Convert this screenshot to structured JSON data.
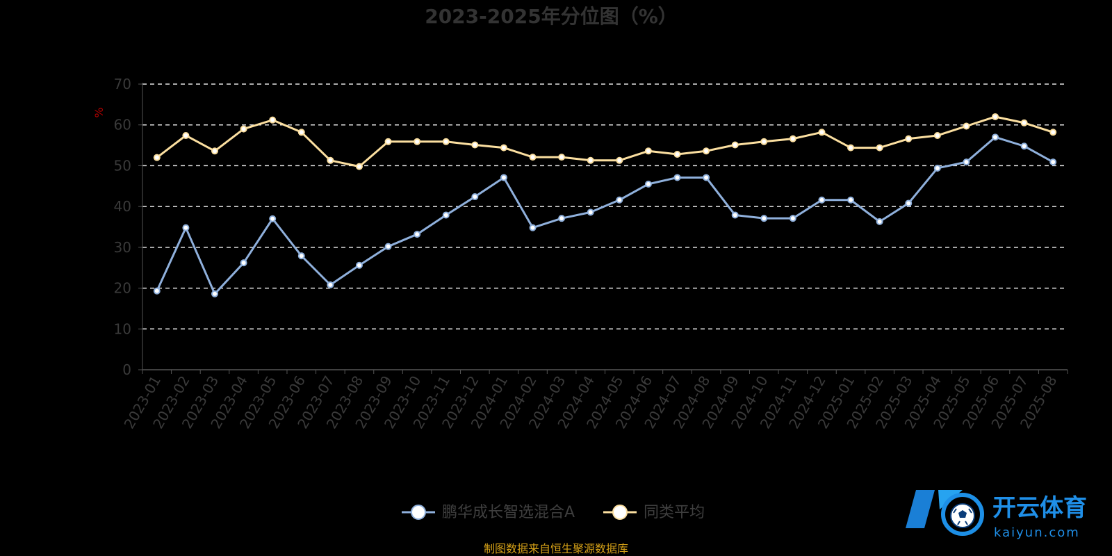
{
  "chart_data": {
    "type": "line",
    "title": "2023-2025年分位图（%）",
    "ylabel": "%",
    "ylim": [
      0,
      70
    ],
    "yticks": [
      0,
      10,
      20,
      30,
      40,
      50,
      60,
      70
    ],
    "grid": true,
    "legend_position": "bottom-center",
    "categories": [
      "2023-01",
      "2023-02",
      "2023-03",
      "2023-04",
      "2023-05",
      "2023-06",
      "2023-07",
      "2023-08",
      "2023-09",
      "2023-10",
      "2023-11",
      "2023-12",
      "2024-01",
      "2024-02",
      "2024-03",
      "2024-04",
      "2024-05",
      "2024-06",
      "2024-07",
      "2024-08",
      "2024-09",
      "2024-10",
      "2024-11",
      "2024-12",
      "2025-01",
      "2025-02",
      "2025-03",
      "2025-04",
      "2025-05",
      "2025-06",
      "2025-07",
      "2025-08"
    ],
    "series": [
      {
        "name": "鹏华成长智选混合A",
        "color": "#8fb0dc",
        "values": [
          19.3,
          34.8,
          18.6,
          26.2,
          37.0,
          27.9,
          20.8,
          25.6,
          30.2,
          33.2,
          37.9,
          42.4,
          47.1,
          34.8,
          37.1,
          38.6,
          41.6,
          45.5,
          47.1,
          47.1,
          37.9,
          37.1,
          37.1,
          41.6,
          41.6,
          36.3,
          40.8,
          49.4,
          50.9,
          57.0,
          54.8,
          50.9
        ]
      },
      {
        "name": "同类平均",
        "color": "#fbdfa0",
        "values": [
          52.0,
          57.4,
          53.6,
          59.0,
          61.2,
          58.2,
          51.3,
          49.8,
          55.9,
          55.9,
          55.9,
          55.1,
          54.4,
          52.1,
          52.1,
          51.3,
          51.3,
          53.6,
          52.8,
          53.6,
          55.1,
          55.9,
          56.6,
          58.2,
          54.4,
          54.4,
          56.6,
          57.4,
          59.7,
          62.0,
          60.5,
          58.2
        ]
      }
    ]
  },
  "source_note": "制图数据来自恒生聚源数据库",
  "logo": {
    "text": "开云体育",
    "sub": "kaiyun.com",
    "icon": "kaiyun-ball-logo-icon"
  }
}
